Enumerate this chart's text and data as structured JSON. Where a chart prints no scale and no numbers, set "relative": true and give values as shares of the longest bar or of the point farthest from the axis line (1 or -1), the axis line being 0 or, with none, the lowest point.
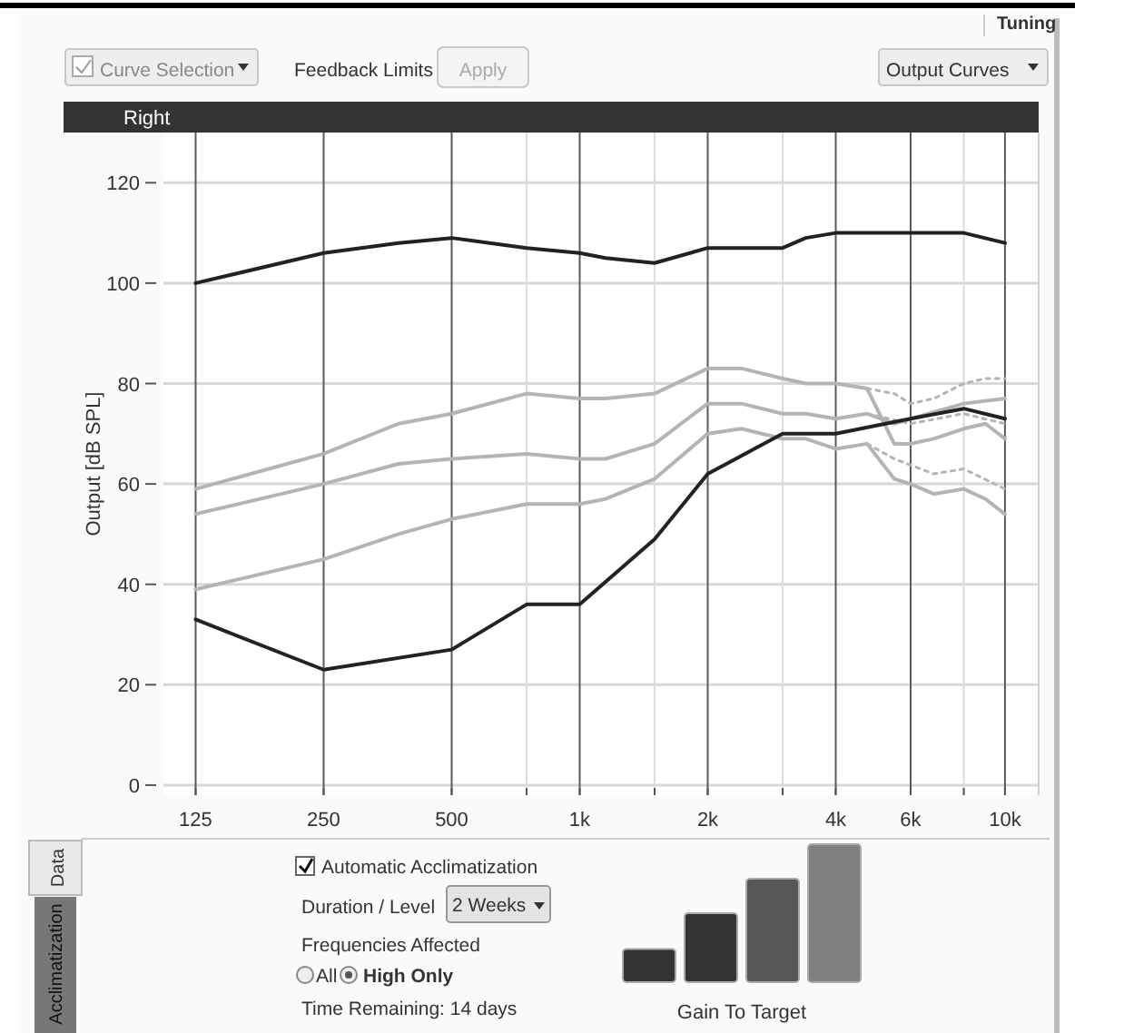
{
  "chart_data": [
    {
      "type": "line",
      "title": "Right",
      "ylabel": "Output [dB SPL]",
      "log": "x",
      "grid": true,
      "marker": "none",
      "xlim": [
        105,
        12000
      ],
      "ylim": [
        -2,
        130
      ],
      "xticks": [
        125,
        250,
        500,
        {
          "value": 750,
          "label": null
        },
        {
          "value": 1000,
          "label": "1k"
        },
        {
          "value": 1500,
          "label": null
        },
        {
          "value": 2000,
          "label": "2k"
        },
        {
          "value": 3000,
          "label": null
        },
        {
          "value": 4000,
          "label": "4k"
        },
        {
          "value": 6000,
          "label": "6k"
        },
        {
          "value": 8000,
          "label": null
        },
        {
          "value": 10000,
          "label": "10k"
        }
      ],
      "yticks": [
        0,
        20,
        40,
        60,
        80,
        100,
        120
      ],
      "series": [
        {
          "color": "#222222",
          "line_style": "solid",
          "x": [
            125,
            250,
            375,
            500,
            750,
            1000,
            1150,
            1500,
            2000,
            3000,
            3400,
            4000,
            6000,
            8000,
            10000
          ],
          "values": [
            100,
            106,
            108,
            109,
            107,
            106,
            105,
            104,
            107,
            107,
            109,
            110,
            110,
            110,
            108
          ]
        },
        {
          "color": "#b4b4b4",
          "line_style": "solid",
          "x": [
            125,
            250,
            375,
            500,
            750,
            1000,
            1150,
            1500,
            2000,
            2400,
            3000,
            3400,
            4000,
            4740,
            5490,
            6000,
            6800,
            8000,
            9000,
            10000
          ],
          "values": [
            59,
            66,
            72,
            74,
            78,
            77,
            77,
            78,
            83,
            83,
            81,
            80,
            80,
            79,
            68,
            68,
            69,
            71,
            72,
            69
          ]
        },
        {
          "color": "#b4b4b4",
          "line_style": "solid",
          "x": [
            125,
            250,
            375,
            500,
            750,
            1000,
            1150,
            1500,
            2000,
            2400,
            3000,
            3400,
            4000,
            4740,
            5490,
            6000,
            8000,
            10000
          ],
          "values": [
            54,
            60,
            64,
            65,
            66,
            65,
            65,
            68,
            76,
            76,
            74,
            74,
            73,
            74,
            72,
            73,
            76,
            77
          ]
        },
        {
          "color": "#b4b4b4",
          "line_style": "solid",
          "x": [
            125,
            250,
            375,
            500,
            750,
            1000,
            1150,
            1500,
            2000,
            2400,
            3000,
            3400,
            4000,
            4740,
            5490,
            6000,
            6800,
            8000,
            9000,
            10000
          ],
          "values": [
            39,
            45,
            50,
            53,
            56,
            56,
            57,
            61,
            70,
            71,
            69,
            69,
            67,
            68,
            61,
            60,
            58,
            59,
            57,
            54
          ]
        },
        {
          "color": "#b4b4b4",
          "line_style": "dotted",
          "x": [
            4740,
            5490,
            6000,
            6800,
            8000,
            9000,
            10000
          ],
          "values": [
            79,
            78,
            76,
            77,
            80,
            81,
            81
          ]
        },
        {
          "color": "#b4b4b4",
          "line_style": "dotted",
          "x": [
            4740,
            6000,
            8000,
            10000
          ],
          "values": [
            74,
            72,
            74,
            72
          ]
        },
        {
          "color": "#b4b4b4",
          "line_style": "dotted",
          "x": [
            4740,
            5490,
            6800,
            8000,
            10000
          ],
          "values": [
            68,
            65,
            62,
            63,
            59
          ]
        },
        {
          "color": "#222222",
          "line_style": "solid",
          "x": [
            125,
            250,
            500,
            750,
            1000,
            1500,
            2000,
            3000,
            4000,
            6000,
            8000,
            10000
          ],
          "values": [
            33,
            23,
            27,
            36,
            36,
            49,
            62,
            70,
            70,
            73,
            75,
            73
          ]
        }
      ]
    },
    {
      "type": "other",
      "annotations": [
        "Tuning",
        "Curve Selection",
        "Feedback Limits",
        "Apply",
        "Output Curves",
        "Data",
        "Acclimatization",
        "Automatic Acclimatization",
        "Duration / Level",
        "2 Weeks",
        "Frequencies Affected",
        "All",
        "High Only",
        "Time Remaining: 14 days"
      ]
    },
    {
      "type": "bar",
      "relative": true,
      "xlabel": "Gain To Target",
      "categories": [
        null,
        null,
        null,
        null
      ],
      "values": [
        0.24,
        0.5,
        0.75,
        1
      ],
      "colors": [
        "#333333",
        "#333333",
        "#575757",
        "#7f7f7f"
      ]
    }
  ]
}
